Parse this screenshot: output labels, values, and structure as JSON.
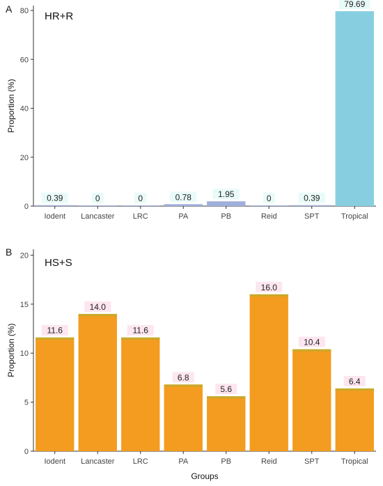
{
  "chart_data": [
    {
      "type": "bar",
      "panel_letter": "A",
      "title": "HR+R",
      "xlabel": "",
      "ylabel": "Proportion (%)",
      "ylim": [
        0,
        82
      ],
      "yticks": [
        "0",
        "20",
        "40",
        "60",
        "80"
      ],
      "categories": [
        "Iodent",
        "Lancaster",
        "LRC",
        "PA",
        "PB",
        "Reid",
        "SPT",
        "Tropical"
      ],
      "values": [
        0.39,
        0,
        0,
        0.78,
        1.95,
        0,
        0.39,
        79.69
      ],
      "value_labels": [
        "0.39",
        "0",
        "0",
        "0.78",
        "1.95",
        "0",
        "0.39",
        "79.69"
      ],
      "bar_colors": [
        "#9fb0dd",
        "#9fb0dd",
        "#9fb0dd",
        "#9fb0dd",
        "#9fb0dd",
        "#9fb0dd",
        "#9fb0dd",
        "#87cfe0"
      ],
      "label_bg": "#e9fbf8",
      "grid": false
    },
    {
      "type": "bar",
      "panel_letter": "B",
      "title": "HS+S",
      "xlabel": "Groups",
      "ylabel": "Proportion (%)",
      "ylim": [
        0,
        20.6
      ],
      "yticks": [
        "0",
        "5",
        "10",
        "15",
        "20"
      ],
      "categories": [
        "Iodent",
        "Lancaster",
        "LRC",
        "PA",
        "PB",
        "Reid",
        "SPT",
        "Tropical"
      ],
      "values": [
        11.6,
        14.0,
        11.6,
        6.8,
        5.6,
        16.0,
        10.4,
        6.4
      ],
      "value_labels": [
        "11.6",
        "14.0",
        "11.6",
        "6.8",
        "5.6",
        "16.0",
        "10.4",
        "6.4"
      ],
      "bar_colors": [
        "#f39c1f",
        "#f39c1f",
        "#f39c1f",
        "#f39c1f",
        "#f39c1f",
        "#f39c1f",
        "#f39c1f",
        "#f39c1f"
      ],
      "bar_top_color": "#c8a92a",
      "label_bg": "#fde6ef",
      "grid": false
    }
  ]
}
